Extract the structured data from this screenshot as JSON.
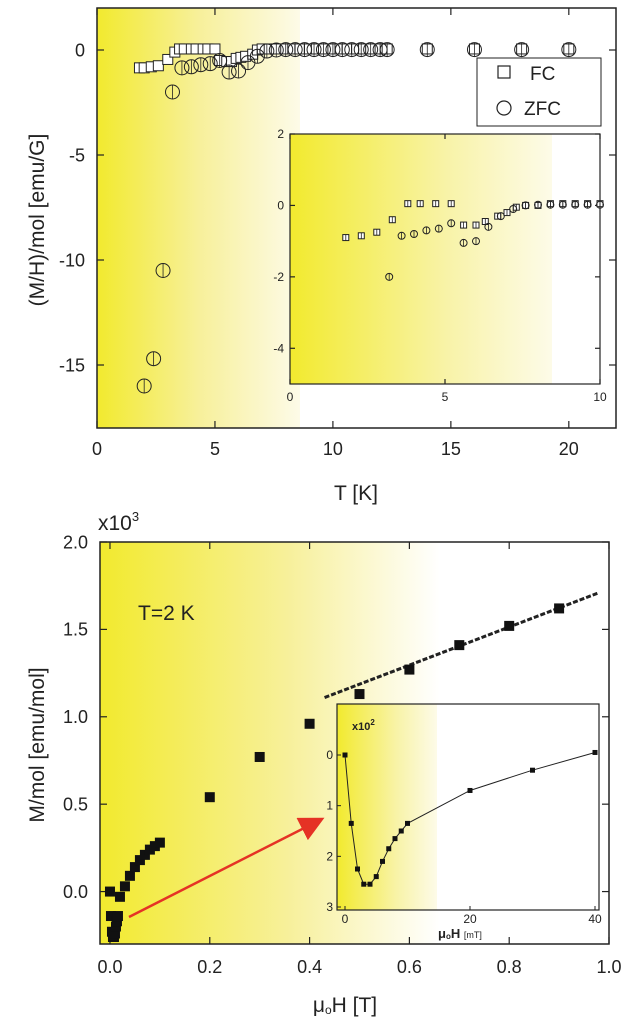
{
  "chart_data": [
    {
      "type": "scatter",
      "id": "top-main",
      "xlabel": "T [K]",
      "ylabel": "(M/H)/mol [emu/G]",
      "xlim": [
        0,
        22
      ],
      "ylim": [
        -18,
        2
      ],
      "xticks": [
        0,
        5,
        10,
        15,
        20
      ],
      "yticks": [
        0,
        -5,
        -10,
        -15
      ],
      "xtick_labels": [
        "0",
        "5",
        "10",
        "15",
        "20"
      ],
      "ytick_labels": [
        "0",
        "-5",
        "-10",
        "-15"
      ],
      "legend": {
        "position": "top-right",
        "entries": [
          {
            "label": "FC",
            "marker": "square"
          },
          {
            "label": "ZFC",
            "marker": "circle"
          }
        ]
      },
      "series": [
        {
          "name": "FC",
          "marker": "square",
          "x": [
            1.8,
            2.0,
            2.3,
            2.6,
            3.0,
            3.3,
            3.5,
            3.7,
            4.0,
            4.2,
            4.5,
            4.7,
            5.0,
            5.2,
            5.5,
            5.7,
            5.9,
            6.1,
            6.3,
            6.6,
            6.8,
            7.0,
            7.3,
            7.6,
            8.0,
            8.3,
            8.6,
            9.0,
            9.3,
            9.6,
            10.0,
            10.3,
            10.6,
            11.0,
            11.3,
            11.6,
            12.0,
            12.3,
            14.0,
            16.0,
            18.0,
            20.0
          ],
          "y": [
            -0.85,
            -0.85,
            -0.8,
            -0.75,
            -0.45,
            -0.1,
            0.05,
            0.05,
            0.05,
            0.05,
            0.05,
            0.05,
            0.05,
            -0.5,
            -0.55,
            -0.55,
            -0.4,
            -0.35,
            -0.3,
            -0.2,
            0.0,
            0.05,
            0.05,
            0.05,
            0.05,
            0.05,
            0.05,
            0.05,
            0.05,
            0.05,
            0.05,
            0.05,
            0.05,
            0.05,
            0.05,
            0.05,
            0.05,
            0.05,
            0.05,
            0.05,
            0.05,
            0.05
          ]
        },
        {
          "name": "ZFC",
          "marker": "circle",
          "x": [
            2.0,
            2.4,
            2.8,
            3.2,
            3.6,
            4.0,
            4.4,
            4.8,
            5.2,
            5.6,
            6.0,
            6.4,
            6.8,
            7.2,
            7.6,
            8.0,
            8.4,
            8.8,
            9.2,
            9.6,
            10.0,
            10.4,
            10.8,
            11.2,
            11.6,
            12.0,
            12.3,
            14.0,
            16.0,
            18.0,
            20.0
          ],
          "y": [
            -16.0,
            -14.7,
            -10.5,
            -2.0,
            -0.85,
            -0.8,
            -0.7,
            -0.65,
            -0.5,
            -1.05,
            -1.0,
            -0.6,
            -0.3,
            -0.05,
            0.0,
            0.02,
            0.02,
            0.02,
            0.02,
            0.02,
            0.02,
            0.02,
            0.02,
            0.02,
            0.02,
            0.02,
            0.02,
            0.02,
            0.02,
            0.02,
            0.02
          ]
        }
      ]
    },
    {
      "type": "scatter",
      "id": "top-inset",
      "xlim": [
        0,
        10
      ],
      "ylim": [
        -5,
        2
      ],
      "xticks": [
        0,
        5,
        10
      ],
      "yticks": [
        2,
        0,
        -2,
        -4
      ],
      "xtick_labels": [
        "0",
        "5",
        "10"
      ],
      "ytick_labels": [
        "2",
        "0",
        "-2",
        "-4"
      ],
      "series": [
        {
          "name": "FC",
          "marker": "square",
          "x": [
            1.8,
            2.3,
            2.8,
            3.3,
            3.8,
            4.2,
            4.7,
            5.2,
            5.6,
            6.0,
            6.3,
            6.7,
            7.0,
            7.3,
            7.6,
            8.0,
            8.4,
            8.8,
            9.2,
            9.6,
            10.0
          ],
          "y": [
            -0.9,
            -0.85,
            -0.75,
            -0.4,
            0.05,
            0.05,
            0.05,
            0.05,
            -0.55,
            -0.55,
            -0.45,
            -0.3,
            -0.2,
            -0.05,
            0.0,
            0.0,
            0.05,
            0.05,
            0.05,
            0.05,
            0.05
          ]
        },
        {
          "name": "ZFC",
          "marker": "circle",
          "x": [
            3.2,
            3.6,
            4.0,
            4.4,
            4.8,
            5.2,
            5.6,
            6.0,
            6.4,
            6.8,
            7.2,
            7.6,
            8.0,
            8.4,
            8.8,
            9.2,
            9.6,
            10.0
          ],
          "y": [
            -2.0,
            -0.85,
            -0.8,
            -0.7,
            -0.65,
            -0.5,
            -1.05,
            -1.0,
            -0.6,
            -0.3,
            -0.1,
            0.0,
            0.02,
            0.02,
            0.02,
            0.02,
            0.02,
            0.02
          ]
        }
      ]
    },
    {
      "type": "scatter",
      "id": "bottom-main",
      "xlabel_parts": {
        "mu": "μ",
        "sub": "o",
        "rest": "H [T]"
      },
      "ylabel": "M/mol [emu/mol]",
      "multiplier": {
        "base": "x10",
        "exp": "3"
      },
      "annotation": "T=2 K",
      "xlim": [
        -0.02,
        1.0
      ],
      "ylim": [
        -0.3,
        2.0
      ],
      "xticks": [
        0.0,
        0.2,
        0.4,
        0.6,
        0.8,
        1.0
      ],
      "yticks": [
        0.0,
        0.5,
        1.0,
        1.5,
        2.0
      ],
      "xtick_labels": [
        "0.0",
        "0.2",
        "0.4",
        "0.6",
        "0.8",
        "1.0"
      ],
      "ytick_labels": [
        "0.0",
        "0.5",
        "1.0",
        "1.5",
        "2.0"
      ],
      "series": [
        {
          "name": "",
          "marker": "filled-square",
          "x": [
            0.0,
            0.002,
            0.004,
            0.006,
            0.008,
            0.01,
            0.012,
            0.014,
            0.016,
            0.02,
            0.03,
            0.04,
            0.05,
            0.06,
            0.07,
            0.08,
            0.09,
            0.1,
            0.2,
            0.3,
            0.4,
            0.5,
            0.6,
            0.7,
            0.8,
            0.9
          ],
          "y": [
            0.0,
            -0.14,
            -0.23,
            -0.26,
            -0.26,
            -0.24,
            -0.2,
            -0.17,
            -0.14,
            -0.03,
            0.03,
            0.09,
            0.14,
            0.18,
            0.21,
            0.24,
            0.26,
            0.28,
            0.54,
            0.77,
            0.96,
            1.13,
            1.27,
            1.41,
            1.52,
            1.62
          ]
        }
      ],
      "fit_line": {
        "x": [
          0.43,
          0.98
        ],
        "y": [
          1.11,
          1.71
        ]
      }
    },
    {
      "type": "line",
      "id": "bottom-inset",
      "xlabel_parts": {
        "mu": "μ",
        "sub": "o",
        "rest": "H ",
        "unit": "[mT]"
      },
      "multiplier": {
        "base": "x10",
        "exp": "2"
      },
      "xlim": [
        0,
        40
      ],
      "ylim": [
        3,
        0
      ],
      "xticks": [
        0,
        20,
        40
      ],
      "yticks": [
        0,
        1,
        2,
        3
      ],
      "xtick_labels": [
        "0",
        "20",
        "40"
      ],
      "ytick_labels": [
        "0",
        "1",
        "2",
        "3"
      ],
      "series": [
        {
          "name": "",
          "marker": "filled-square",
          "x": [
            0,
            1,
            2,
            3,
            4,
            5,
            6,
            7,
            8,
            9,
            10,
            20,
            30,
            40
          ],
          "y": [
            0.0,
            1.35,
            2.25,
            2.55,
            2.55,
            2.4,
            2.1,
            1.85,
            1.65,
            1.5,
            1.35,
            0.7,
            0.3,
            -0.05
          ]
        }
      ]
    }
  ]
}
